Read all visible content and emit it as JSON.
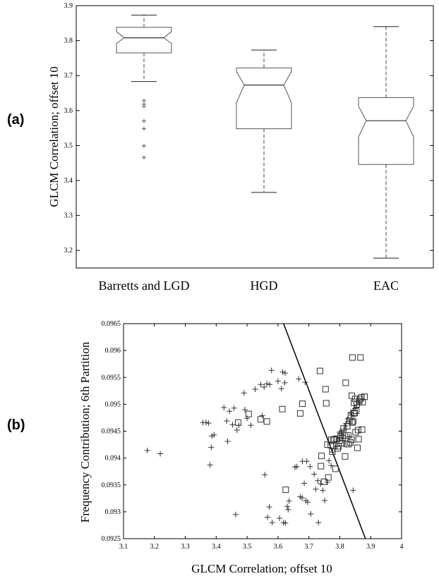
{
  "panels": {
    "a_label": "(a)",
    "b_label": "(b)"
  },
  "chart_data": [
    {
      "type": "box",
      "panel": "(a)",
      "notched": true,
      "ylabel": "GLCM Correlation; offset 10",
      "ylim": [
        3.15,
        3.9
      ],
      "yticks": [
        3.2,
        3.3,
        3.4,
        3.5,
        3.6,
        3.7,
        3.8,
        3.9
      ],
      "categories": [
        "Barretts and LGD",
        "HGD",
        "EAC"
      ],
      "boxes": [
        {
          "category": "Barretts and LGD",
          "whisker_low": 3.683,
          "q1": 3.765,
          "median": 3.808,
          "q3": 3.838,
          "whisker_high": 3.873,
          "notch_low": 3.792,
          "notch_high": 3.826,
          "outliers": [
            3.628,
            3.618,
            3.612,
            3.57,
            3.548,
            3.499,
            3.466
          ]
        },
        {
          "category": "HGD",
          "whisker_low": 3.366,
          "q1": 3.548,
          "median": 3.673,
          "q3": 3.722,
          "whisker_high": 3.773,
          "notch_low": 3.622,
          "notch_high": 3.712,
          "outliers": []
        },
        {
          "category": "EAC",
          "whisker_low": 3.178,
          "q1": 3.446,
          "median": 3.571,
          "q3": 3.637,
          "whisker_high": 3.84,
          "notch_low": 3.525,
          "notch_high": 3.612,
          "outliers": []
        }
      ]
    },
    {
      "type": "scatter",
      "panel": "(b)",
      "xlabel": "GLCM Correlation; offset 10",
      "ylabel": "Frequency Contribution; 6th Partition",
      "xlim": [
        3.1,
        4.0
      ],
      "ylim": [
        0.0925,
        0.0965
      ],
      "xticks": [
        3.1,
        3.2,
        3.3,
        3.4,
        3.5,
        3.6,
        3.7,
        3.8,
        3.9,
        4.0
      ],
      "xtick_labels": [
        "3.1",
        "3.2",
        "3.3",
        "3.4",
        "3.5",
        "3.6",
        "3.7",
        "3.8",
        "3.9",
        "4"
      ],
      "yticks": [
        0.0925,
        0.093,
        0.0935,
        0.094,
        0.0945,
        0.095,
        0.0955,
        0.096,
        0.0965
      ],
      "ytick_labels": [
        "0.0925",
        "0.093",
        "0.0935",
        "0.094",
        "0.0945",
        "0.095",
        "0.0955",
        "0.096",
        "0.0965"
      ],
      "line": {
        "x1": 3.618,
        "y1": 0.0965,
        "x2": 3.883,
        "y2": 0.0925
      },
      "series": [
        {
          "marker": "plus",
          "points": [
            [
              3.177,
              0.09414
            ],
            [
              3.219,
              0.09408
            ],
            [
              3.357,
              0.09466
            ],
            [
              3.367,
              0.09466
            ],
            [
              3.375,
              0.09465
            ],
            [
              3.38,
              0.09387
            ],
            [
              3.384,
              0.0942
            ],
            [
              3.386,
              0.09441
            ],
            [
              3.393,
              0.09443
            ],
            [
              3.425,
              0.09494
            ],
            [
              3.434,
              0.09469
            ],
            [
              3.437,
              0.09431
            ],
            [
              3.443,
              0.09487
            ],
            [
              3.453,
              0.09462
            ],
            [
              3.458,
              0.09493
            ],
            [
              3.463,
              0.09295
            ],
            [
              3.467,
              0.09452
            ],
            [
              3.473,
              0.09461
            ],
            [
              3.49,
              0.09521
            ],
            [
              3.493,
              0.0949
            ],
            [
              3.5,
              0.09474
            ],
            [
              3.512,
              0.09461
            ],
            [
              3.526,
              0.09528
            ],
            [
              3.544,
              0.09537
            ],
            [
              3.549,
              0.09479
            ],
            [
              3.555,
              0.09532
            ],
            [
              3.557,
              0.09369
            ],
            [
              3.564,
              0.09538
            ],
            [
              3.566,
              0.0929
            ],
            [
              3.572,
              0.09309
            ],
            [
              3.573,
              0.09537
            ],
            [
              3.579,
              0.09563
            ],
            [
              3.581,
              0.0928
            ],
            [
              3.6,
              0.09543
            ],
            [
              3.605,
              0.09288
            ],
            [
              3.611,
              0.09529
            ],
            [
              3.615,
              0.0956
            ],
            [
              3.618,
              0.0928
            ],
            [
              3.622,
              0.0954
            ],
            [
              3.623,
              0.09558
            ],
            [
              3.624,
              0.09279
            ],
            [
              3.63,
              0.0931
            ],
            [
              3.633,
              0.09304
            ],
            [
              3.636,
              0.0932
            ],
            [
              3.655,
              0.09383
            ],
            [
              3.661,
              0.09384
            ],
            [
              3.667,
              0.09547
            ],
            [
              3.672,
              0.09328
            ],
            [
              3.678,
              0.09326
            ],
            [
              3.679,
              0.09394
            ],
            [
              3.685,
              0.09353
            ],
            [
              3.688,
              0.09541
            ],
            [
              3.69,
              0.09321
            ],
            [
              3.693,
              0.09394
            ],
            [
              3.696,
              0.09318
            ],
            [
              3.704,
              0.09384
            ],
            [
              3.706,
              0.09296
            ],
            [
              3.717,
              0.0937
            ],
            [
              3.722,
              0.09342
            ],
            [
              3.729,
              0.09358
            ],
            [
              3.731,
              0.0928
            ],
            [
              3.738,
              0.09352
            ],
            [
              3.745,
              0.0934
            ],
            [
              3.751,
              0.09321
            ],
            [
              3.76,
              0.09355
            ],
            [
              3.765,
              0.09395
            ],
            [
              3.772,
              0.09386
            ],
            [
              3.777,
              0.09411
            ],
            [
              3.78,
              0.09427
            ],
            [
              3.784,
              0.09417
            ],
            [
              3.791,
              0.09421
            ],
            [
              3.797,
              0.09432
            ],
            [
              3.799,
              0.09448
            ],
            [
              3.805,
              0.09444
            ],
            [
              3.81,
              0.09442
            ],
            [
              3.813,
              0.09452
            ],
            [
              3.818,
              0.0946
            ],
            [
              3.82,
              0.09464
            ],
            [
              3.826,
              0.09473
            ],
            [
              3.832,
              0.09468
            ],
            [
              3.835,
              0.09485
            ],
            [
              3.838,
              0.0948
            ],
            [
              3.843,
              0.0934
            ],
            [
              3.849,
              0.09492
            ],
            [
              3.855,
              0.09499
            ],
            [
              3.862,
              0.09503
            ],
            [
              3.806,
              0.0945
            ],
            [
              3.83,
              0.0944
            ]
          ]
        },
        {
          "marker": "square",
          "points": [
            [
              3.471,
              0.09466
            ],
            [
              3.505,
              0.09482
            ],
            [
              3.544,
              0.09472
            ],
            [
              3.564,
              0.09468
            ],
            [
              3.614,
              0.09491
            ],
            [
              3.625,
              0.09341
            ],
            [
              3.672,
              0.09483
            ],
            [
              3.679,
              0.09501
            ],
            [
              3.736,
              0.09562
            ],
            [
              3.739,
              0.09385
            ],
            [
              3.741,
              0.09404
            ],
            [
              3.749,
              0.09356
            ],
            [
              3.754,
              0.09528
            ],
            [
              3.756,
              0.09502
            ],
            [
              3.76,
              0.09425
            ],
            [
              3.763,
              0.09364
            ],
            [
              3.771,
              0.09424
            ],
            [
              3.773,
              0.09434
            ],
            [
              3.776,
              0.09412
            ],
            [
              3.779,
              0.09434
            ],
            [
              3.783,
              0.09435
            ],
            [
              3.786,
              0.0938
            ],
            [
              3.79,
              0.09436
            ],
            [
              3.793,
              0.09418
            ],
            [
              3.796,
              0.09422
            ],
            [
              3.8,
              0.09433
            ],
            [
              3.803,
              0.09441
            ],
            [
              3.806,
              0.09428
            ],
            [
              3.809,
              0.09437
            ],
            [
              3.812,
              0.09455
            ],
            [
              3.815,
              0.09442
            ],
            [
              3.817,
              0.09403
            ],
            [
              3.819,
              0.0954
            ],
            [
              3.822,
              0.09426
            ],
            [
              3.824,
              0.09459
            ],
            [
              3.827,
              0.09442
            ],
            [
              3.829,
              0.09426
            ],
            [
              3.831,
              0.0947
            ],
            [
              3.834,
              0.09429
            ],
            [
              3.836,
              0.09478
            ],
            [
              3.838,
              0.09434
            ],
            [
              3.839,
              0.09516
            ],
            [
              3.84,
              0.09466
            ],
            [
              3.841,
              0.09587
            ],
            [
              3.843,
              0.09468
            ],
            [
              3.845,
              0.09483
            ],
            [
              3.846,
              0.09503
            ],
            [
              3.848,
              0.09484
            ],
            [
              3.85,
              0.0951
            ],
            [
              3.851,
              0.09448
            ],
            [
              3.853,
              0.09488
            ],
            [
              3.855,
              0.095
            ],
            [
              3.857,
              0.09419
            ],
            [
              3.859,
              0.09452
            ],
            [
              3.861,
              0.09435
            ],
            [
              3.863,
              0.09506
            ],
            [
              3.866,
              0.0951
            ],
            [
              3.867,
              0.09587
            ],
            [
              3.87,
              0.09513
            ],
            [
              3.872,
              0.09453
            ],
            [
              3.874,
              0.09504
            ],
            [
              3.88,
              0.09514
            ]
          ]
        }
      ]
    }
  ]
}
